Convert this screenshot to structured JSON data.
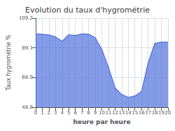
{
  "chart_data": {
    "type": "area",
    "title": "Evolution du taux d'hygrométrie",
    "xlabel": "heure par heure",
    "ylabel": "Taux hygrométrie %",
    "x": [
      0,
      1,
      2,
      3,
      4,
      5,
      6,
      7,
      8,
      9,
      10,
      11,
      12,
      13,
      14,
      15,
      16,
      17,
      18,
      19,
      20
    ],
    "values": [
      98.5,
      98.3,
      97.8,
      96.5,
      93.5,
      98.0,
      97.5,
      98.5,
      98.3,
      96.0,
      88.0,
      76.0,
      62.0,
      57.5,
      55.5,
      56.5,
      59.5,
      79.0,
      92.0,
      93.0,
      93.0
    ],
    "xlim": [
      0,
      20
    ],
    "xticks": [
      0,
      1,
      2,
      3,
      4,
      5,
      6,
      7,
      8,
      9,
      10,
      11,
      12,
      13,
      14,
      15,
      16,
      17,
      18,
      19,
      20
    ],
    "ylim": [
      48.8,
      109.2
    ],
    "yticks": [
      48.8,
      68.9,
      89.1,
      109.2
    ],
    "grid": true
  }
}
